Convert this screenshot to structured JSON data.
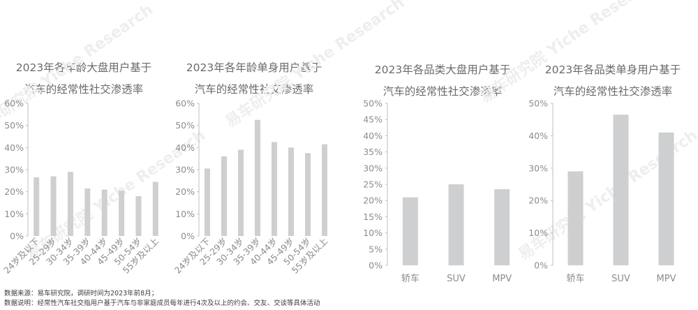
{
  "watermark_text": "易车研究院 Yiche Research",
  "colors": {
    "bar": "#cdcfd1",
    "axis": "#bfbfbf",
    "tick_text": "#8c8c8c",
    "title": "#6b6b6b"
  },
  "chart_data": [
    {
      "type": "bar",
      "title_line1": "2023年各年龄大盘用户基于",
      "title_line2": "汽车的经常性社交渗透率",
      "categories": [
        "24岁及以下",
        "25-29岁",
        "30-34岁",
        "35-39岁",
        "40-44岁",
        "45-49岁",
        "50-54岁",
        "55岁及以上"
      ],
      "values": [
        26.5,
        27,
        29,
        21.5,
        21,
        20.5,
        18,
        24.5
      ],
      "ylim": [
        0,
        60
      ],
      "yticks": [
        "0%",
        "10%",
        "20%",
        "30%",
        "40%",
        "50%",
        "60%"
      ]
    },
    {
      "type": "bar",
      "title_line1": "2023年各年龄单身用户基于",
      "title_line2": "汽车的经常性社交渗透率",
      "categories": [
        "24岁及以下",
        "25-29岁",
        "30-34岁",
        "35-39岁",
        "40-44岁",
        "45-49岁",
        "50-54岁",
        "55岁及以上"
      ],
      "values": [
        30.5,
        36,
        39,
        52.5,
        42.5,
        40,
        37.5,
        41.5
      ],
      "ylim": [
        0,
        60
      ],
      "yticks": [
        "0%",
        "10%",
        "20%",
        "30%",
        "40%",
        "50%",
        "60%"
      ]
    },
    {
      "type": "bar",
      "title_line1": "2023年各品类大盘用户基于",
      "title_line2": "汽车的经常性社交渗透率",
      "categories": [
        "轿车",
        "SUV",
        "MPV"
      ],
      "values": [
        21,
        25,
        23.5
      ],
      "ylim": [
        0,
        50
      ],
      "yticks": [
        "0%",
        "5%",
        "10%",
        "15%",
        "20%",
        "25%",
        "30%",
        "35%",
        "40%",
        "45%",
        "50%"
      ]
    },
    {
      "type": "bar",
      "title_line1": "2023年各品类单身用户基于",
      "title_line2": "汽车的经常性社交渗透率",
      "categories": [
        "轿车",
        "SUV",
        "MPV"
      ],
      "values": [
        29,
        46.5,
        41
      ],
      "ylim": [
        0,
        50
      ],
      "yticks": [
        "0%",
        "10%",
        "20%",
        "30%",
        "40%",
        "50%"
      ]
    }
  ],
  "footnotes": {
    "source": "数据来源：易车研究院，调研时间为2023年前8月；",
    "definition": "数据说明：经常性汽车社交指用户基于汽车与非家庭成员每年进行4次及以上的约会、交友、交谈等具体活动"
  }
}
